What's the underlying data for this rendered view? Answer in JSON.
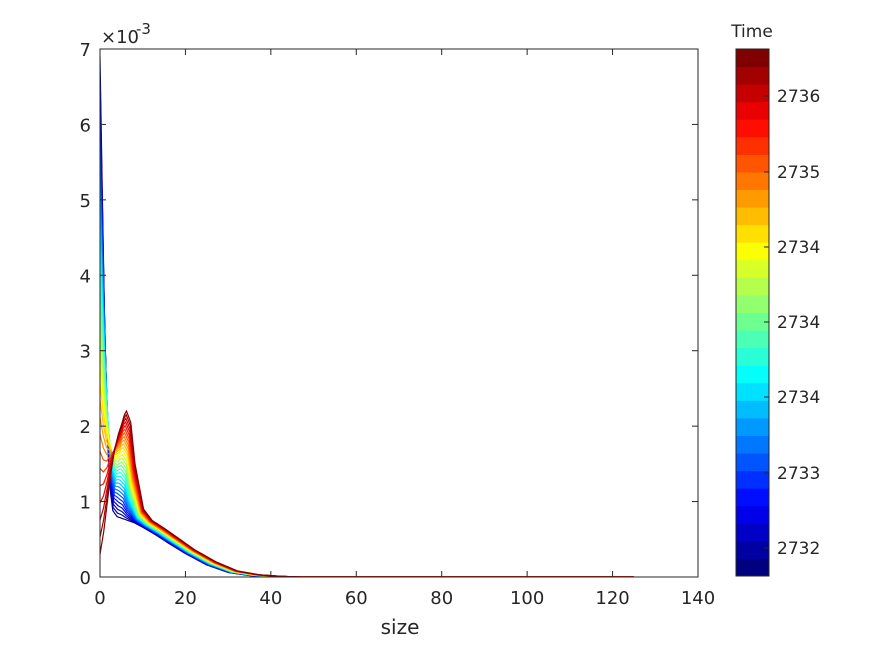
{
  "chart_data": {
    "type": "line",
    "xlabel": "size",
    "ylabel": "",
    "xlim": [
      0,
      140
    ],
    "ylim": [
      0,
      0.007
    ],
    "x_ticks": [
      "0",
      "20",
      "40",
      "60",
      "80",
      "100",
      "120",
      "140"
    ],
    "y_ticks": [
      "0",
      "1",
      "2",
      "3",
      "4",
      "5",
      "6",
      "7"
    ],
    "y_exponent_label": "×10",
    "y_exponent_power": "-3",
    "grid": false,
    "colormap": "jet",
    "colorbar": {
      "title": "Time",
      "ticks": [
        "2732",
        "2733",
        "2734",
        "2734",
        "2734",
        "2735",
        "2736"
      ],
      "num_levels": 30
    },
    "x_max_data": 125,
    "series_count": 30,
    "profiles": {
      "first": {
        "color": "#00008f",
        "x": [
          0,
          0.5,
          1,
          1.5,
          2,
          2.5,
          3,
          4,
          5,
          6,
          8,
          10,
          13,
          16,
          20,
          25,
          30,
          35,
          40,
          45,
          50,
          60,
          80,
          100,
          125
        ],
        "y": [
          0.0069,
          0.0052,
          0.0036,
          0.0024,
          0.0015,
          0.0011,
          0.00088,
          0.0008,
          0.00078,
          0.00076,
          0.00072,
          0.00066,
          0.00056,
          0.00045,
          0.00031,
          0.00016,
          6e-05,
          2e-05,
          5e-06,
          0,
          0,
          0,
          0,
          0,
          0
        ]
      },
      "last": {
        "color": "#a00000",
        "x": [
          0,
          0.5,
          1,
          1.5,
          2,
          2.5,
          3,
          3.5,
          4,
          5,
          6,
          8,
          10,
          13,
          16,
          20,
          25,
          30,
          35,
          40,
          45,
          50,
          60,
          80,
          100,
          125
        ],
        "y": [
          0.0003,
          0.0006,
          0.001,
          0.0014,
          0.0017,
          0.0019,
          0.00205,
          0.00215,
          0.0022,
          0.00205,
          0.0015,
          0.0009,
          0.00075,
          0.00064,
          0.00052,
          0.00036,
          0.0002,
          8e-05,
          3e-05,
          1e-05,
          0,
          0,
          0,
          0,
          0,
          0
        ]
      }
    }
  }
}
